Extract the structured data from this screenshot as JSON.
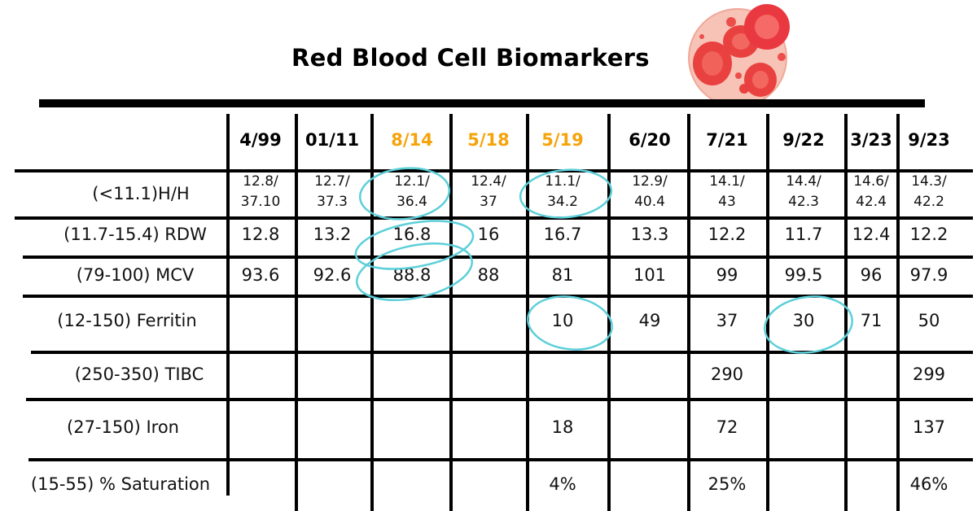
{
  "title": "Red Blood Cell Biomarkers",
  "colors": {
    "highlight_date": "#F5A30A",
    "circle": "#5CCFD9",
    "rule": "#000000"
  },
  "icons": {
    "illustration": "red-blood-cells-icon"
  },
  "table": {
    "dates": [
      {
        "label": "4/99",
        "highlight": false
      },
      {
        "label": "01/11",
        "highlight": false
      },
      {
        "label": "8/14",
        "highlight": true
      },
      {
        "label": "5/18",
        "highlight": true
      },
      {
        "label": "5/19",
        "highlight": true
      },
      {
        "label": "6/20",
        "highlight": false
      },
      {
        "label": "7/21",
        "highlight": false
      },
      {
        "label": "9/22",
        "highlight": false
      },
      {
        "label": "3/23",
        "highlight": false
      },
      {
        "label": "9/23",
        "highlight": false
      }
    ],
    "rows": [
      {
        "label": "(<11.1)H/H",
        "values": [
          "12.8/\n37.10",
          "12.7/\n37.3",
          "12.1/\n36.4",
          "12.4/\n37",
          "11.1/\n34.2",
          "12.9/\n40.4",
          "14.1/\n43",
          "14.4/\n42.3",
          "14.6/\n42.4",
          "14.3/\n42.2"
        ]
      },
      {
        "label": "(11.7-15.4) RDW",
        "values": [
          "12.8",
          "13.2",
          "16.8",
          "16",
          "16.7",
          "13.3",
          "12.2",
          "11.7",
          "12.4",
          "12.2"
        ]
      },
      {
        "label": "(79-100) MCV",
        "values": [
          "93.6",
          "92.6",
          "88.8",
          "88",
          "81",
          "101",
          "99",
          "99.5",
          "96",
          "97.9"
        ]
      },
      {
        "label": "(12-150) Ferritin",
        "values": [
          "",
          "",
          "",
          "",
          "10",
          "49",
          "37",
          "30",
          "71",
          "50"
        ]
      },
      {
        "label": "(250-350) TIBC",
        "values": [
          "",
          "",
          "",
          "",
          "",
          "",
          "290",
          "",
          "",
          "299"
        ]
      },
      {
        "label": "(27-150) Iron",
        "values": [
          "",
          "",
          "",
          "",
          "18",
          "",
          "72",
          "",
          "",
          "137"
        ]
      },
      {
        "label": "(15-55) % Saturation",
        "values": [
          "",
          "",
          "",
          "",
          "4%",
          "",
          "25%",
          "",
          "",
          "46%"
        ]
      }
    ],
    "circled": [
      {
        "row": 0,
        "col": 2
      },
      {
        "row": 0,
        "col": 4
      },
      {
        "row": 1,
        "col": 2
      },
      {
        "row": 2,
        "col": 2
      },
      {
        "row": 3,
        "col": 4
      },
      {
        "row": 3,
        "col": 7
      }
    ]
  }
}
